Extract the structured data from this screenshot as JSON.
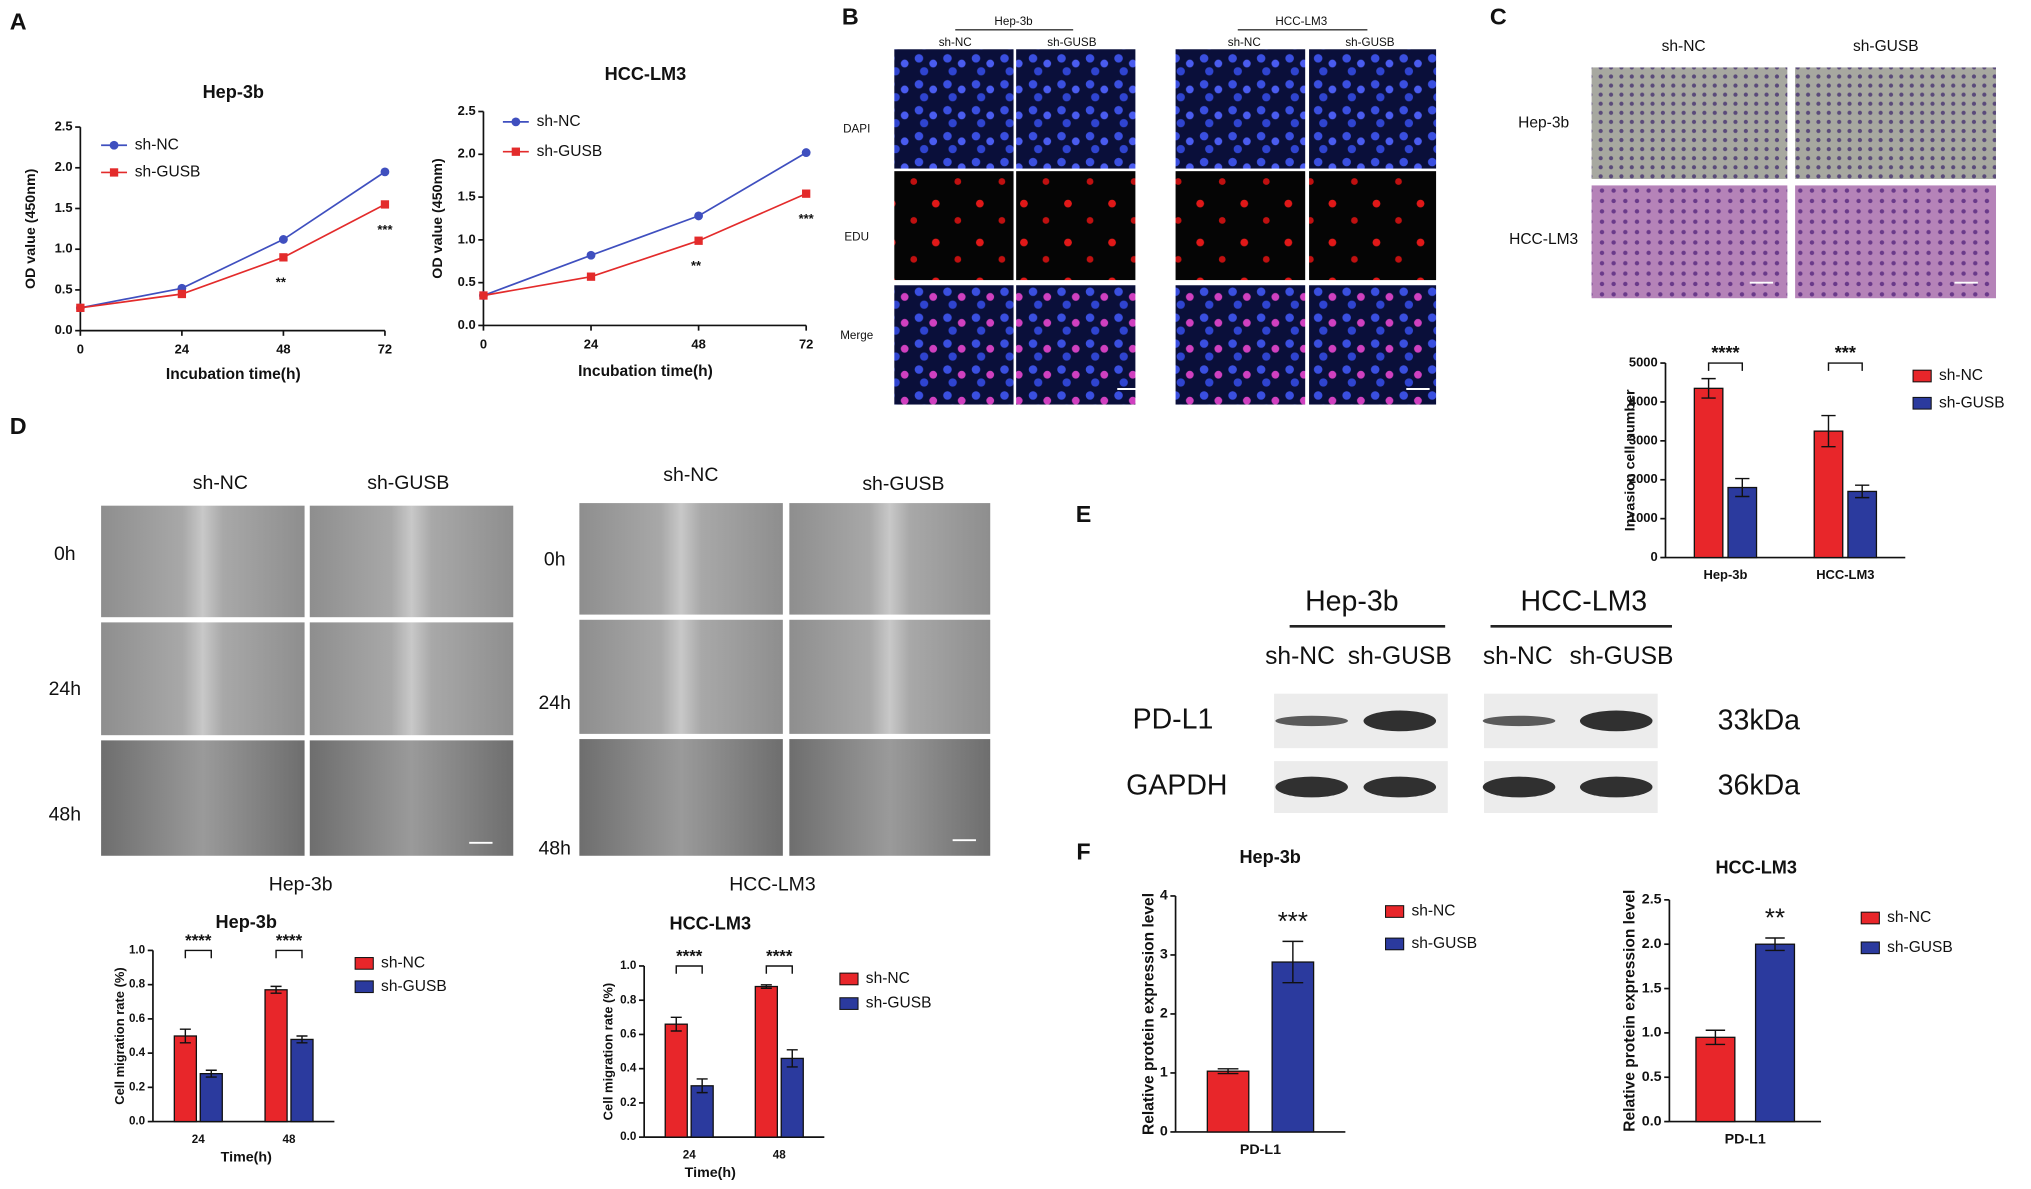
{
  "panel_labels": [
    "A",
    "B",
    "C",
    "D",
    "E",
    "F"
  ],
  "panel_b": {
    "groups": [
      "Hep-3b",
      "HCC-LM3"
    ],
    "columns": [
      "sh-NC",
      "sh-GUSB",
      "sh-NC",
      "sh-GUSB"
    ],
    "rows": [
      "DAPI",
      "EDU",
      "Merge"
    ]
  },
  "panel_c": {
    "columns": [
      "sh-NC",
      "sh-GUSB"
    ],
    "rows": [
      "Hep-3b",
      "HCC-LM3"
    ]
  },
  "panel_d": {
    "groups": [
      {
        "columns": [
          "sh-NC",
          "sh-GUSB"
        ],
        "rows": [
          "0h",
          "24h",
          "48h"
        ],
        "caption": "Hep-3b"
      },
      {
        "columns": [
          "sh-NC",
          "sh-GUSB"
        ],
        "rows": [
          "0h",
          "24h",
          "48h"
        ],
        "caption": "HCC-LM3"
      }
    ]
  },
  "panel_e": {
    "groups": [
      {
        "name": "Hep-3b",
        "columns": [
          "sh-NC",
          "sh-GUSB"
        ]
      },
      {
        "name": "HCC-LM3",
        "columns": [
          "sh-NC",
          "sh-GUSB"
        ]
      }
    ],
    "proteins": [
      "PD-L1",
      "GAPDH"
    ],
    "sizes": [
      "33kDa",
      "36kDa"
    ]
  },
  "chart_data": [
    {
      "type": "line",
      "title": "Hep-3b",
      "x_label": "Incubation time(h)",
      "y_label": "OD value (450nm)",
      "x": [
        0,
        24,
        48,
        72
      ],
      "xlim": [
        0,
        72
      ],
      "xticks": [
        0,
        24,
        48,
        72
      ],
      "ylim": [
        0,
        2.5
      ],
      "yticks": [
        {
          "value": 0,
          "label": "0.0"
        },
        0.5,
        {
          "value": 1,
          "label": "1.0"
        },
        1.5,
        {
          "value": 2,
          "label": "2.0"
        },
        2.5
      ],
      "series": [
        {
          "name": "sh-NC",
          "color": "#3f4fbf",
          "values": [
            0.28,
            0.52,
            1.12,
            1.95
          ]
        },
        {
          "name": "sh-GUSB",
          "color": "#e32b2b",
          "values": [
            0.28,
            0.45,
            0.9,
            1.55
          ]
        }
      ],
      "annotations": [
        null,
        null,
        "**",
        "***"
      ]
    },
    {
      "type": "line",
      "title": "HCC-LM3",
      "x_label": "Incubation time(h)",
      "y_label": "OD value (450nm)",
      "x": [
        0,
        24,
        48,
        72
      ],
      "xlim": [
        0,
        72
      ],
      "xticks": [
        0,
        24,
        48,
        72
      ],
      "ylim": [
        0,
        2.5
      ],
      "yticks": [
        {
          "value": 0,
          "label": "0.0"
        },
        0.5,
        {
          "value": 1,
          "label": "1.0"
        },
        1.5,
        {
          "value": 2,
          "label": "2.0"
        },
        2.5
      ],
      "series": [
        {
          "name": "sh-NC",
          "color": "#3f4fbf",
          "values": [
            0.35,
            0.82,
            1.28,
            2.02
          ]
        },
        {
          "name": "sh-GUSB",
          "color": "#e32b2b",
          "values": [
            0.35,
            0.57,
            0.99,
            1.54
          ]
        }
      ],
      "annotations": [
        null,
        null,
        "**",
        "***"
      ]
    },
    {
      "type": "bar",
      "y_label": "Invasion cell number",
      "categories": [
        "Hep-3b",
        "HCC-LM3"
      ],
      "ylim": [
        0,
        5000
      ],
      "yticks": [
        0,
        1000,
        2000,
        3000,
        4000,
        5000
      ],
      "series": [
        {
          "name": "sh-NC",
          "color": "#e8262a",
          "values": [
            4350,
            3250
          ],
          "errors": [
            250,
            400
          ]
        },
        {
          "name": "sh-GUSB",
          "color": "#2b3a9e",
          "values": [
            1800,
            1700
          ],
          "errors": [
            230,
            160
          ]
        }
      ],
      "annotations": [
        "****",
        "***"
      ]
    },
    {
      "type": "bar",
      "title": "Hep-3b",
      "x_label": "Time(h)",
      "y_label": "Cell migration rate (%)",
      "categories": [
        "24",
        "48"
      ],
      "ylim": [
        0,
        1
      ],
      "yticks": [
        {
          "value": 0,
          "label": "0.0"
        },
        0.2,
        0.4,
        0.6,
        0.8,
        {
          "value": 1,
          "label": "1.0"
        }
      ],
      "series": [
        {
          "name": "sh-NC",
          "color": "#e8262a",
          "values": [
            0.5,
            0.77
          ],
          "errors": [
            0.04,
            0.02
          ]
        },
        {
          "name": "sh-GUSB",
          "color": "#2b3a9e",
          "values": [
            0.28,
            0.48
          ],
          "errors": [
            0.02,
            0.02
          ]
        }
      ],
      "annotations": [
        "****",
        "****"
      ]
    },
    {
      "type": "bar",
      "title": "HCC-LM3",
      "x_label": "Time(h)",
      "y_label": "Cell migration rate (%)",
      "categories": [
        "24",
        "48"
      ],
      "ylim": [
        0,
        1
      ],
      "yticks": [
        {
          "value": 0,
          "label": "0.0"
        },
        0.2,
        0.4,
        0.6,
        0.8,
        {
          "value": 1,
          "label": "1.0"
        }
      ],
      "series": [
        {
          "name": "sh-NC",
          "color": "#e8262a",
          "values": [
            0.66,
            0.88
          ],
          "errors": [
            0.04,
            0.01
          ]
        },
        {
          "name": "sh-GUSB",
          "color": "#2b3a9e",
          "values": [
            0.3,
            0.46
          ],
          "errors": [
            0.04,
            0.05
          ]
        }
      ],
      "annotations": [
        "****",
        "****"
      ]
    },
    {
      "type": "bar",
      "title": "Hep-3b",
      "y_label": "Relative protein expression level",
      "categories": [
        "PD-L1"
      ],
      "ylim": [
        0,
        4
      ],
      "yticks": [
        0,
        1,
        2,
        3,
        4
      ],
      "series": [
        {
          "name": "sh-NC",
          "color": "#e8262a",
          "values": [
            1.03
          ],
          "errors": [
            0.04
          ]
        },
        {
          "name": "sh-GUSB",
          "color": "#2b3a9e",
          "values": [
            2.88
          ],
          "errors": [
            0.35
          ]
        }
      ],
      "annotations": [
        "***"
      ]
    },
    {
      "type": "bar",
      "title": "HCC-LM3",
      "y_label": "Relative protein expression level",
      "categories": [
        "PD-L1"
      ],
      "ylim": [
        0,
        2.5
      ],
      "yticks": [
        {
          "value": 0,
          "label": "0.0"
        },
        0.5,
        {
          "value": 1,
          "label": "1.0"
        },
        1.5,
        {
          "value": 2,
          "label": "2.0"
        },
        2.5
      ],
      "series": [
        {
          "name": "sh-NC",
          "color": "#e8262a",
          "values": [
            0.95
          ],
          "errors": [
            0.08
          ]
        },
        {
          "name": "sh-GUSB",
          "color": "#2b3a9e",
          "values": [
            2.0
          ],
          "errors": [
            0.07
          ]
        }
      ],
      "annotations": [
        "**"
      ]
    }
  ]
}
